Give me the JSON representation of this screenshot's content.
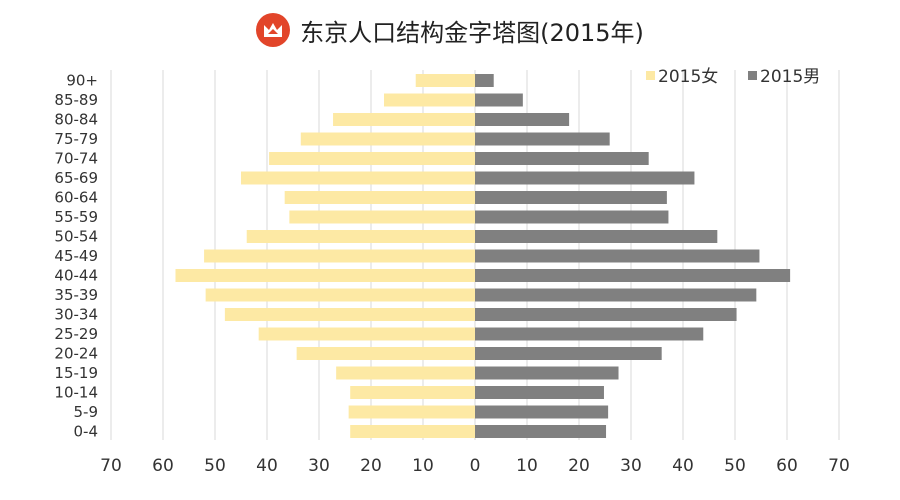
{
  "chart_data": {
    "type": "bar",
    "title": "东京人口结构金字塔图(2015年)",
    "categories": [
      "90+",
      "85-89",
      "80-84",
      "75-79",
      "70-74",
      "65-69",
      "60-64",
      "55-59",
      "50-54",
      "45-49",
      "40-44",
      "35-39",
      "30-34",
      "25-29",
      "20-24",
      "15-19",
      "10-14",
      "5-9",
      "0-4"
    ],
    "series": [
      {
        "name": "2015女",
        "color": "#fde9a4",
        "side": "left",
        "values": [
          11.4,
          17.5,
          27.3,
          33.5,
          39.6,
          45.0,
          36.6,
          35.7,
          43.9,
          52.1,
          57.6,
          51.8,
          48.1,
          41.6,
          34.3,
          26.7,
          24.0,
          24.3,
          24.0
        ]
      },
      {
        "name": "2015男",
        "color": "#808080",
        "side": "right",
        "values": [
          3.6,
          9.2,
          18.1,
          25.9,
          33.4,
          42.2,
          36.9,
          37.2,
          46.6,
          54.7,
          60.6,
          54.1,
          50.3,
          43.9,
          35.9,
          27.6,
          24.8,
          25.6,
          25.2
        ]
      }
    ],
    "xaxis": {
      "ticks": [
        70,
        60,
        50,
        40,
        30,
        20,
        10,
        0,
        10,
        20,
        30,
        40,
        50,
        60,
        70
      ],
      "range": [
        -70,
        70
      ]
    },
    "grid": true,
    "legend": "top-right"
  }
}
